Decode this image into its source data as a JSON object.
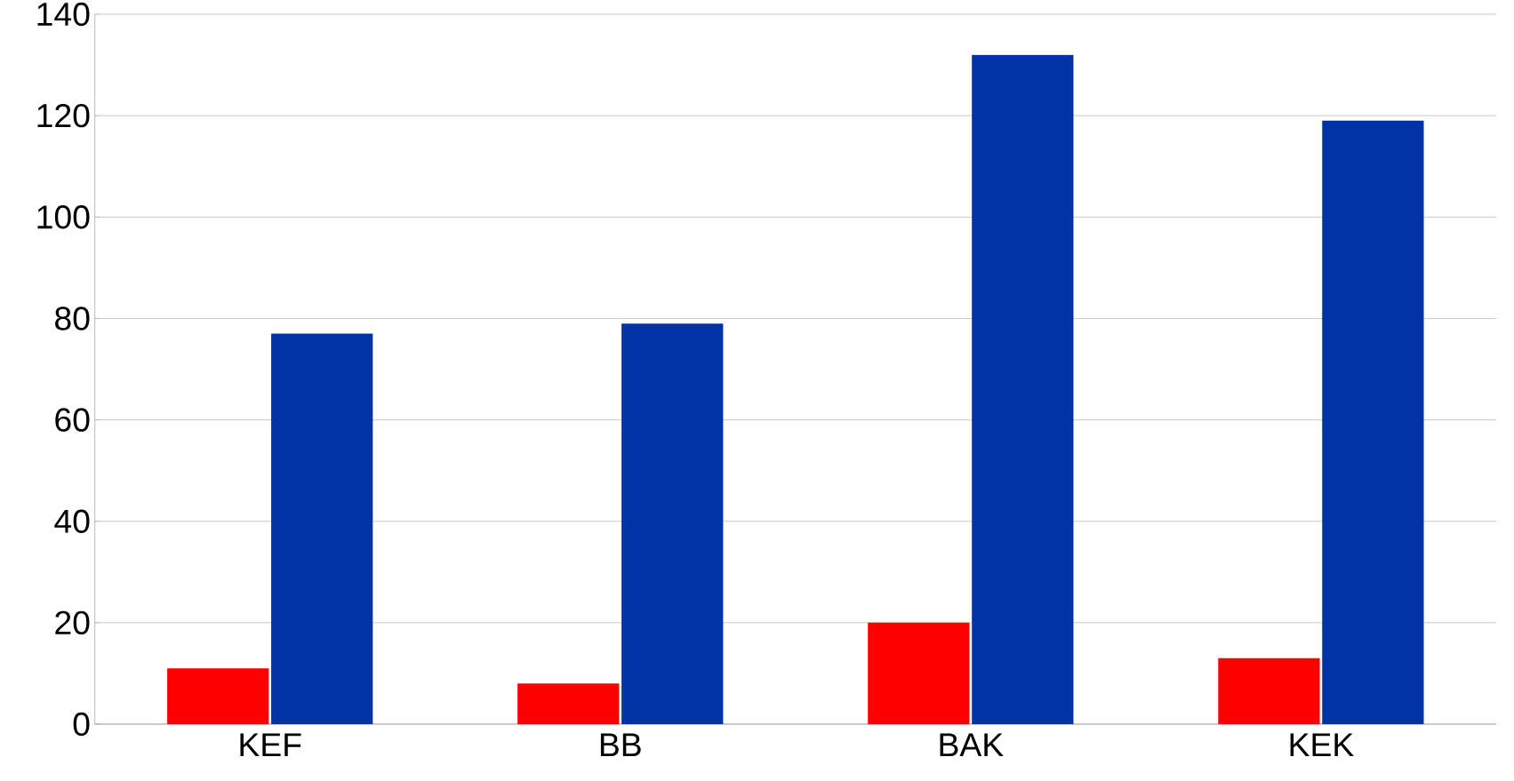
{
  "chart_data": {
    "type": "bar",
    "categories": [
      "KEF",
      "BB",
      "BAK",
      "KEK"
    ],
    "series": [
      {
        "color": "#ff0000",
        "values": [
          11,
          8,
          20,
          13
        ]
      },
      {
        "color": "#0033a6",
        "values": [
          77,
          79,
          132,
          119
        ]
      }
    ],
    "ylim": [
      0,
      140
    ],
    "yticks": [
      0,
      20,
      40,
      60,
      80,
      100,
      120,
      140
    ],
    "grid": "y"
  }
}
